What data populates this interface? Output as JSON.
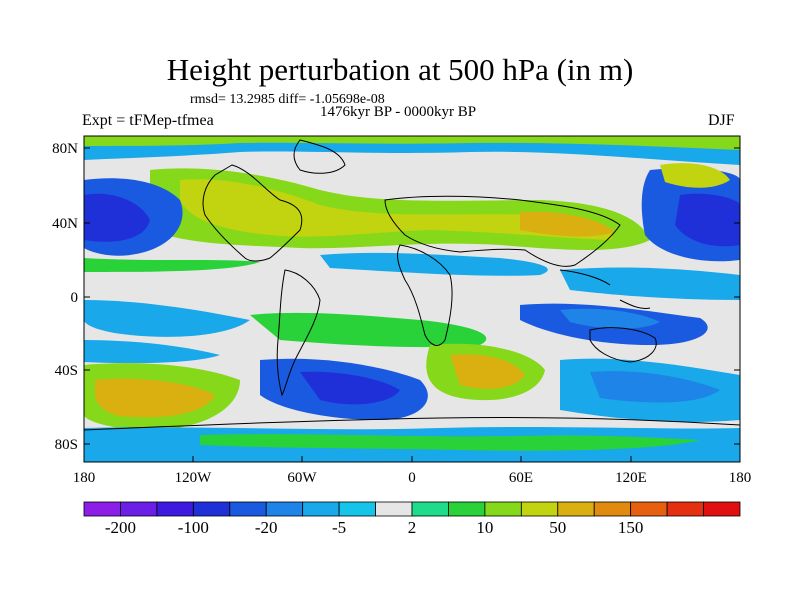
{
  "title": "Height perturbation at 500 hPa (in m)",
  "rmsd_line": "rmsd= 13.2985 diff= -1.05698e-08",
  "period": "1476kyr BP - 0000kyr BP",
  "experiment": "Expt = tFMep-tfmea",
  "season": "DJF",
  "axes": {
    "lat_labels": [
      "80N",
      "40N",
      "0",
      "40S",
      "80S"
    ],
    "lon_labels": [
      "180",
      "120W",
      "60W",
      "0",
      "60E",
      "120E",
      "180"
    ]
  },
  "colorbar": {
    "labels": [
      "-200",
      "-100",
      "-20",
      "-5",
      "2",
      "10",
      "50",
      "150"
    ],
    "colors": [
      "#8c1ee8",
      "#6a1ee6",
      "#3c1ae0",
      "#2030d8",
      "#1a5ae0",
      "#1e84e8",
      "#19a8ea",
      "#16c4ea",
      "#e6e6e6",
      "#1fdc8a",
      "#2ad23a",
      "#86d81a",
      "#c2d410",
      "#dab010",
      "#e08a10",
      "#e66010",
      "#e43010",
      "#e01010"
    ]
  },
  "colors": {
    "neutral": "#e6e6e6",
    "coast": "#000000"
  }
}
